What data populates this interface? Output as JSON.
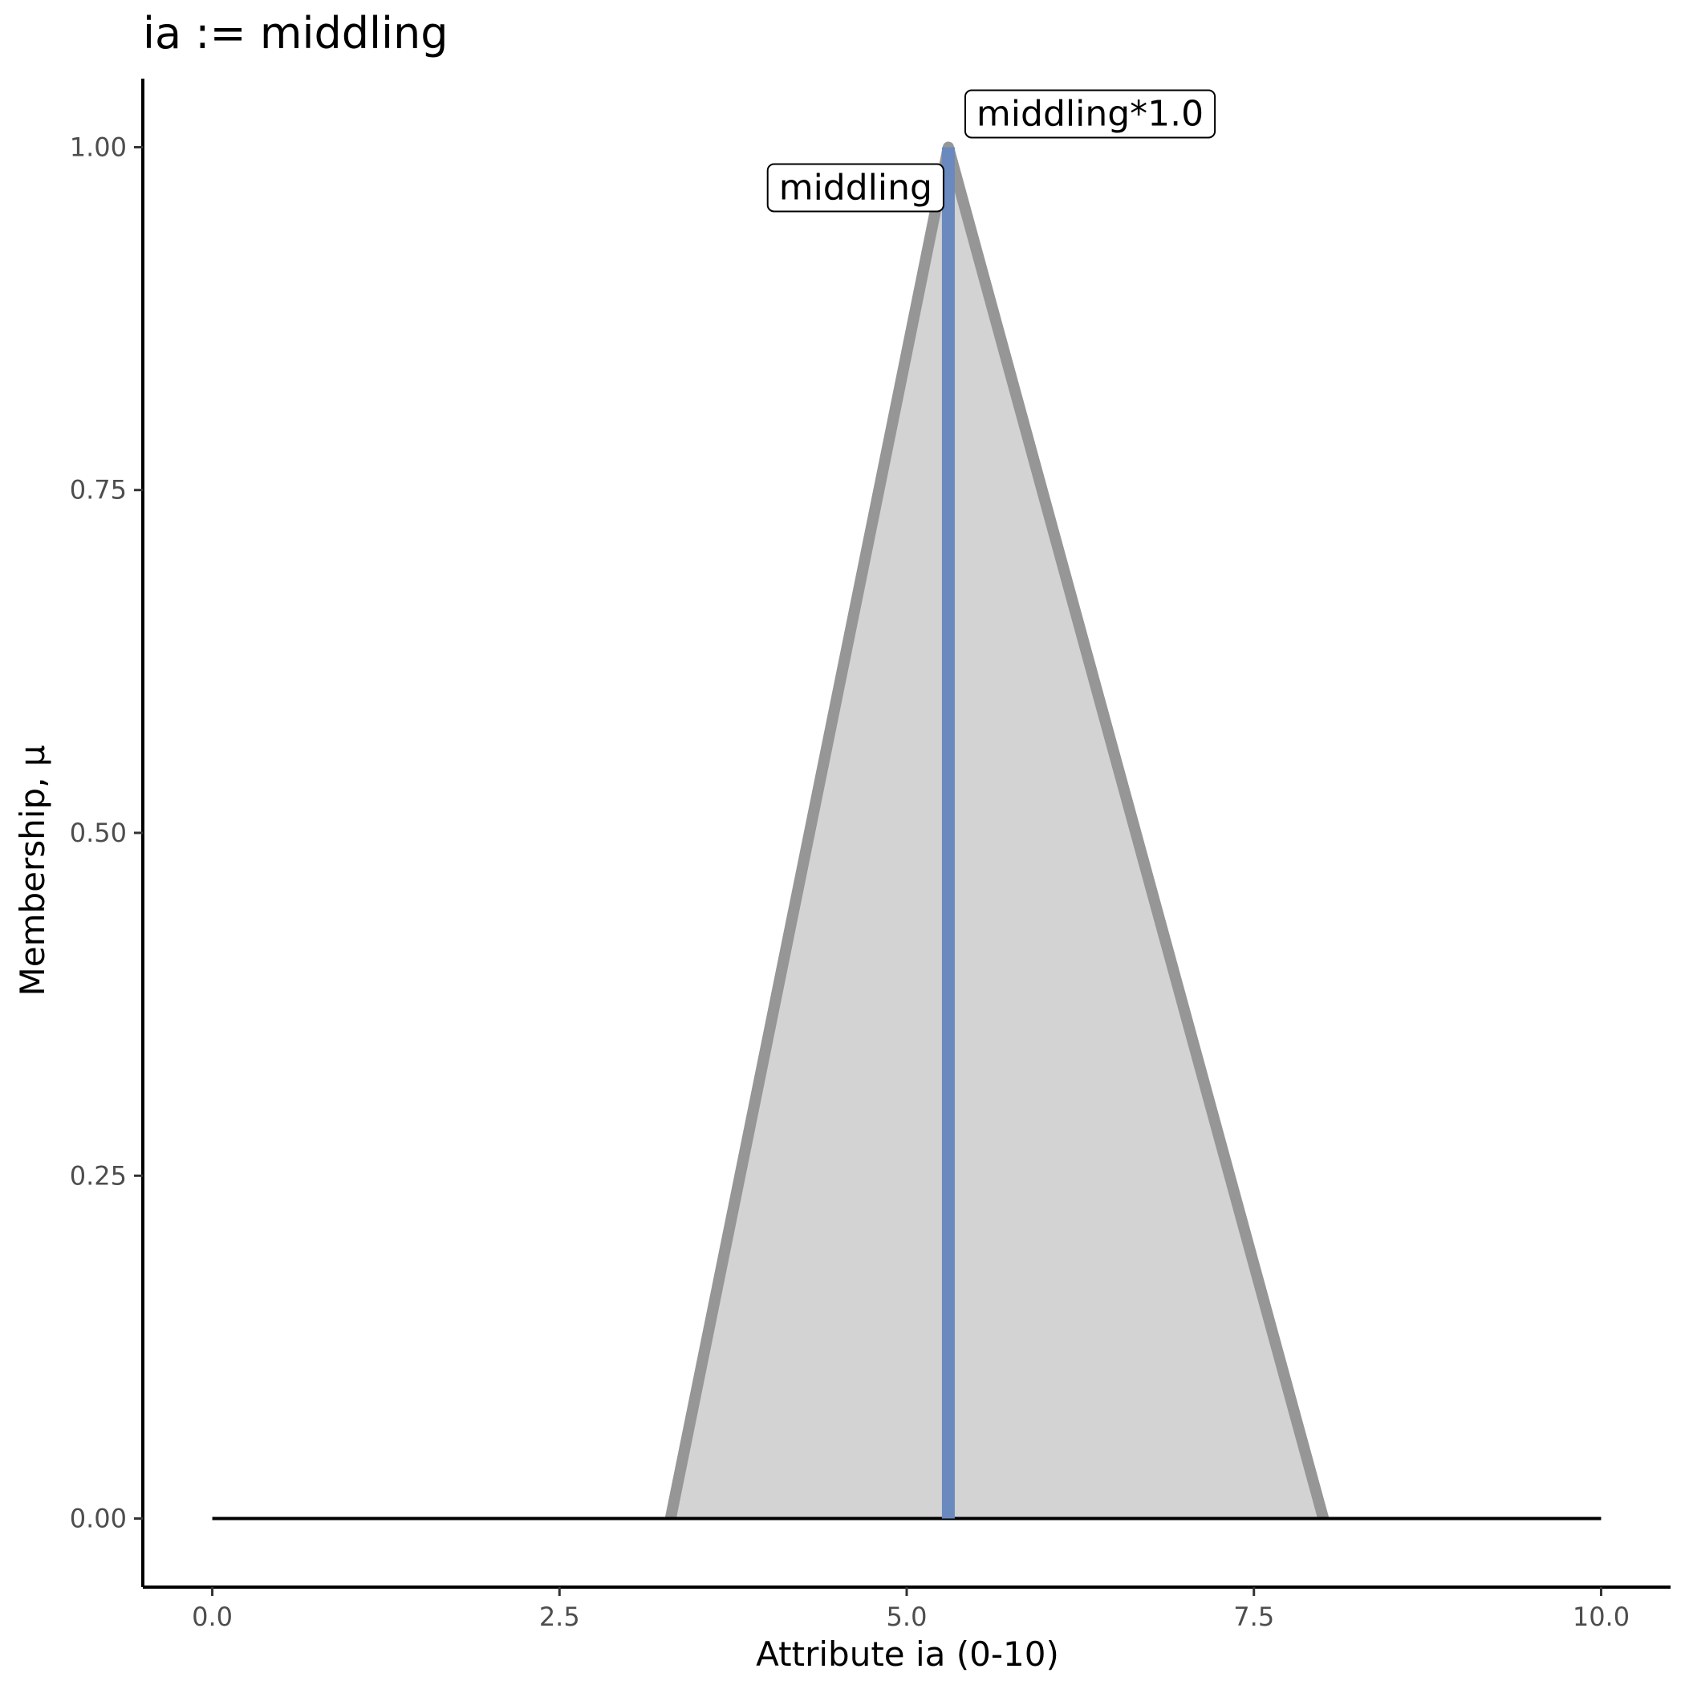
{
  "chart_data": {
    "type": "area",
    "title": "ia := middling",
    "xlabel": "Attribute ia (0-10)",
    "ylabel": "Membership, μ",
    "xlim": [
      -0.5,
      10.5
    ],
    "ylim": [
      -0.05,
      1.05
    ],
    "x_ticks": [
      0.0,
      2.5,
      5.0,
      7.5,
      10.0
    ],
    "x_tick_labels": [
      "0.0",
      "2.5",
      "5.0",
      "7.5",
      "10.0"
    ],
    "y_ticks": [
      0.0,
      0.25,
      0.5,
      0.75,
      1.0
    ],
    "y_tick_labels": [
      "0.00",
      "0.25",
      "0.50",
      "0.75",
      "1.00"
    ],
    "grid": false,
    "membership_function": {
      "points": [
        [
          3.3,
          0.0
        ],
        [
          5.3,
          1.0
        ],
        [
          8.0,
          0.0
        ]
      ],
      "fill_color": "#d3d3d3",
      "line_color": "#969696"
    },
    "baseline": {
      "x": [
        0.0,
        10.0
      ],
      "y": 0.0,
      "color": "#000000"
    },
    "crisp_value": {
      "x": 5.3,
      "y_range": [
        0.0,
        1.0
      ],
      "color": "#6a89bf"
    },
    "annotations": [
      {
        "text": "middling*1.0",
        "x": 5.3,
        "y": 1.0
      },
      {
        "text": "middling",
        "x": 5.3,
        "y": 1.0
      }
    ]
  }
}
